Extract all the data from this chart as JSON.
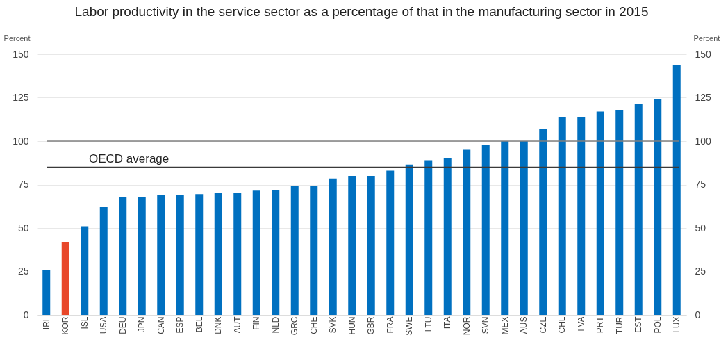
{
  "chart_data": {
    "type": "bar",
    "title": "Labor productivity in the service sector as a percentage of that in the manufacturing sector in 2015",
    "ylabel": "Percent",
    "y2label": "Percent",
    "categories": [
      "IRL",
      "KOR",
      "ISL",
      "USA",
      "DEU",
      "JPN",
      "CAN",
      "ESP",
      "BEL",
      "DNK",
      "AUT",
      "FIN",
      "NLD",
      "GRC",
      "CHE",
      "SVK",
      "HUN",
      "GBR",
      "FRA",
      "SWE",
      "LTU",
      "ITA",
      "NOR",
      "SVN",
      "MEX",
      "AUS",
      "CZE",
      "CHL",
      "LVA",
      "PRT",
      "TUR",
      "EST",
      "POL",
      "LUX"
    ],
    "values": [
      26,
      42,
      51,
      62,
      68,
      68,
      69,
      69,
      69.5,
      70,
      70,
      71.5,
      72,
      74,
      74,
      78.5,
      80,
      80,
      83,
      86.5,
      89,
      90,
      95,
      98,
      100,
      100,
      107,
      114,
      114,
      117,
      118,
      121.5,
      124,
      144
    ],
    "colors": [
      "#0070c0",
      "#e8472a",
      "#0070c0",
      "#0070c0",
      "#0070c0",
      "#0070c0",
      "#0070c0",
      "#0070c0",
      "#0070c0",
      "#0070c0",
      "#0070c0",
      "#0070c0",
      "#0070c0",
      "#0070c0",
      "#0070c0",
      "#0070c0",
      "#0070c0",
      "#0070c0",
      "#0070c0",
      "#0070c0",
      "#0070c0",
      "#0070c0",
      "#0070c0",
      "#0070c0",
      "#0070c0",
      "#0070c0",
      "#0070c0",
      "#0070c0",
      "#0070c0",
      "#0070c0",
      "#0070c0",
      "#0070c0",
      "#0070c0",
      "#0070c0"
    ],
    "ylim": [
      0,
      150
    ],
    "yticks": [
      0,
      25,
      50,
      75,
      100,
      125,
      150
    ],
    "y2lim": [
      0,
      150
    ],
    "y2ticks": [
      0,
      25,
      50,
      75,
      100,
      125,
      150
    ],
    "ref_lines": [
      {
        "axis": "y",
        "value": 100,
        "label": null,
        "color": "#808080"
      },
      {
        "axis": "y",
        "value": 85,
        "label": "OECD average",
        "color": "#3a3a3a"
      }
    ],
    "grid": "y"
  }
}
